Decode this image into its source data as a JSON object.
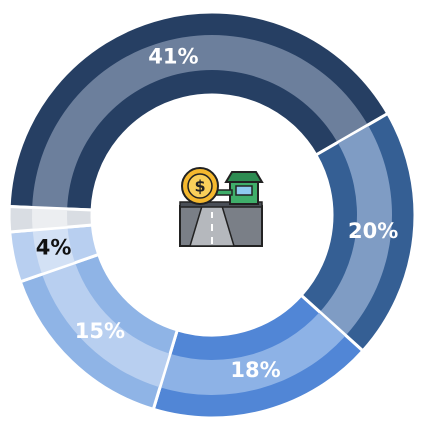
{
  "chart_data": {
    "type": "donut",
    "values": [
      41,
      20,
      18,
      15,
      4,
      2
    ],
    "value_labels": [
      "41%",
      "20%",
      "18%",
      "15%",
      "4%",
      null
    ],
    "colors": [
      "#263f63",
      "#355f94",
      "#5186d6",
      "#8fb4e6",
      "#b8cff0",
      "#d9dde3"
    ],
    "band_colors": [
      "#6c7f9c",
      "#7f9cc4",
      "#8db2e6",
      "#b8cff0",
      "#d3e1f5",
      "#eceef1"
    ],
    "label_colors": [
      "#ffffff",
      "#ffffff",
      "#ffffff",
      "#ffffff",
      "#111111",
      "#111111"
    ],
    "start_angle": 272.4
  }
}
